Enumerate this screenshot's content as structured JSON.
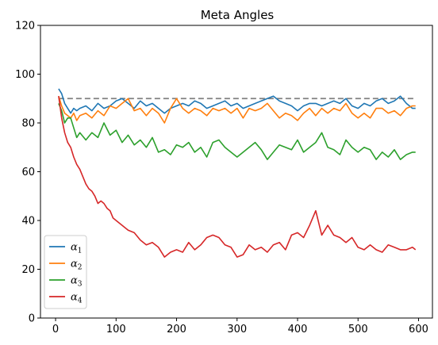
{
  "chart_data": {
    "type": "line",
    "title": "Meta Angles",
    "xlabel": "",
    "ylabel": "",
    "xlim": [
      -25,
      623
    ],
    "ylim": [
      0,
      120
    ],
    "xticks": [
      0,
      100,
      200,
      300,
      400,
      500,
      600
    ],
    "yticks": [
      0,
      20,
      40,
      60,
      80,
      100,
      120
    ],
    "grid": false,
    "legend_position": "lower-left",
    "reference_line": {
      "y": 90,
      "x_range": [
        5,
        595
      ],
      "color": "#808080",
      "style": "dashed"
    },
    "series": [
      {
        "name": "α1",
        "sub": "1",
        "color": "#1f77b4",
        "x": [
          5,
          10,
          15,
          20,
          25,
          30,
          35,
          40,
          50,
          60,
          70,
          80,
          90,
          100,
          110,
          120,
          130,
          140,
          150,
          160,
          170,
          180,
          190,
          200,
          210,
          220,
          230,
          240,
          250,
          260,
          270,
          280,
          290,
          300,
          310,
          320,
          330,
          340,
          350,
          360,
          370,
          380,
          390,
          400,
          410,
          420,
          430,
          440,
          450,
          460,
          470,
          480,
          490,
          500,
          510,
          520,
          530,
          540,
          550,
          560,
          570,
          580,
          590,
          595
        ],
        "y": [
          94,
          92,
          88,
          86,
          84,
          86,
          85,
          86,
          87,
          85,
          88,
          86,
          87,
          89,
          90,
          88,
          86,
          89,
          87,
          88,
          86,
          84,
          86,
          87,
          88,
          87,
          89,
          88,
          86,
          87,
          88,
          89,
          87,
          88,
          86,
          87,
          88,
          89,
          90,
          91,
          89,
          88,
          87,
          85,
          87,
          88,
          88,
          87,
          88,
          89,
          88,
          90,
          87,
          86,
          88,
          87,
          89,
          90,
          88,
          89,
          91,
          88,
          86,
          86
        ]
      },
      {
        "name": "α2",
        "sub": "2",
        "color": "#ff7f0e",
        "x": [
          5,
          10,
          15,
          20,
          25,
          30,
          35,
          40,
          50,
          60,
          70,
          80,
          90,
          100,
          110,
          120,
          130,
          140,
          150,
          160,
          170,
          180,
          190,
          200,
          210,
          220,
          230,
          240,
          250,
          260,
          270,
          280,
          290,
          300,
          310,
          320,
          330,
          340,
          350,
          360,
          370,
          380,
          390,
          400,
          410,
          420,
          430,
          440,
          450,
          460,
          470,
          480,
          490,
          500,
          510,
          520,
          530,
          540,
          550,
          560,
          570,
          580,
          590,
          595
        ],
        "y": [
          91,
          87,
          84,
          83,
          82,
          84,
          81,
          83,
          84,
          82,
          85,
          83,
          87,
          86,
          88,
          90,
          85,
          86,
          83,
          86,
          84,
          80,
          86,
          90,
          86,
          84,
          86,
          85,
          83,
          86,
          85,
          86,
          84,
          86,
          82,
          86,
          85,
          86,
          88,
          85,
          82,
          84,
          83,
          81,
          84,
          86,
          83,
          86,
          84,
          86,
          85,
          88,
          84,
          82,
          84,
          82,
          86,
          86,
          84,
          85,
          83,
          86,
          87,
          87
        ]
      },
      {
        "name": "α3",
        "sub": "3",
        "color": "#2ca02c",
        "x": [
          5,
          10,
          15,
          20,
          25,
          30,
          35,
          40,
          50,
          60,
          70,
          80,
          90,
          100,
          110,
          120,
          130,
          140,
          150,
          160,
          170,
          180,
          190,
          200,
          210,
          220,
          230,
          240,
          250,
          260,
          270,
          280,
          290,
          300,
          310,
          320,
          330,
          340,
          350,
          360,
          370,
          380,
          390,
          400,
          410,
          420,
          430,
          440,
          450,
          460,
          470,
          480,
          490,
          500,
          510,
          520,
          530,
          540,
          550,
          560,
          570,
          580,
          590,
          595
        ],
        "y": [
          88,
          85,
          80,
          82,
          82,
          78,
          74,
          76,
          73,
          76,
          74,
          80,
          75,
          77,
          72,
          75,
          71,
          73,
          70,
          74,
          68,
          69,
          67,
          71,
          70,
          72,
          68,
          70,
          66,
          72,
          73,
          70,
          68,
          66,
          68,
          70,
          72,
          69,
          65,
          68,
          71,
          70,
          69,
          73,
          68,
          70,
          72,
          76,
          70,
          69,
          67,
          73,
          70,
          68,
          70,
          69,
          65,
          68,
          66,
          69,
          65,
          67,
          68,
          68
        ]
      },
      {
        "name": "α4",
        "sub": "4",
        "color": "#d62728",
        "x": [
          5,
          10,
          15,
          20,
          25,
          30,
          35,
          40,
          45,
          50,
          55,
          60,
          65,
          70,
          75,
          80,
          85,
          90,
          95,
          100,
          110,
          120,
          130,
          140,
          150,
          160,
          170,
          180,
          190,
          200,
          210,
          220,
          230,
          240,
          250,
          260,
          270,
          280,
          290,
          300,
          310,
          320,
          330,
          340,
          350,
          360,
          370,
          380,
          390,
          400,
          410,
          420,
          430,
          440,
          450,
          460,
          470,
          480,
          490,
          500,
          510,
          520,
          530,
          540,
          550,
          560,
          570,
          580,
          590,
          595
        ],
        "y": [
          91,
          82,
          76,
          72,
          70,
          66,
          63,
          61,
          58,
          55,
          53,
          52,
          50,
          47,
          48,
          47,
          45,
          44,
          41,
          40,
          38,
          36,
          35,
          32,
          30,
          31,
          29,
          25,
          27,
          28,
          27,
          31,
          28,
          30,
          33,
          34,
          33,
          30,
          29,
          25,
          26,
          30,
          28,
          29,
          27,
          30,
          31,
          28,
          34,
          35,
          33,
          38,
          44,
          34,
          38,
          34,
          33,
          31,
          33,
          29,
          28,
          30,
          28,
          27,
          30,
          29,
          28,
          28,
          29,
          28
        ]
      }
    ]
  }
}
